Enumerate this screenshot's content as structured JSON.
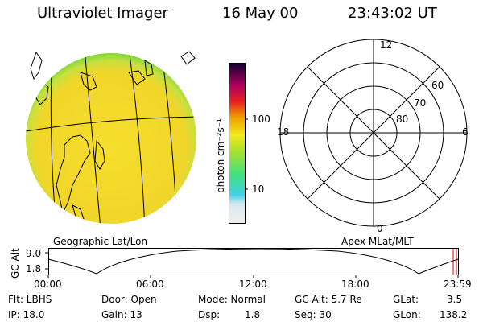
{
  "header": {
    "title": "Ultraviolet Imager",
    "date": "16 May 00",
    "time": "23:43:02 UT"
  },
  "colorbar": {
    "unit_label": "photon cm⁻²s⁻¹",
    "tick_labels": [
      "100",
      "10"
    ]
  },
  "panels": {
    "left_label": "Geographic Lat/Lon",
    "right_label": "Apex MLat/MLT"
  },
  "polar": {
    "mlt_labels": [
      "12",
      "18",
      "6",
      "0"
    ],
    "lat_labels": [
      "60",
      "70",
      "80"
    ]
  },
  "timeline": {
    "ylabel": "GC Alt",
    "y_ticks": [
      "9.0",
      "1.8"
    ],
    "x_ticks": [
      "00:00",
      "06:00",
      "12:00",
      "18:00",
      "23:59"
    ]
  },
  "info": {
    "flt": "Flt: LBHS",
    "ip": "IP: 18.0",
    "door": "Door: Open",
    "gain": "Gain: 13",
    "mode": "Mode: Normal",
    "dsp_label": "Dsp:",
    "dsp_value": "1.8",
    "gc_alt": "GC Alt: 5.7 Re",
    "seq": "Seq: 30",
    "glat_label": "GLat:",
    "glat_value": "3.5",
    "glon_label": "GLon:",
    "glon_value": "138.2"
  },
  "colors": {
    "disk_fill": "#f5dc2a",
    "disk_edge": "#88d838",
    "colorbar_stops": [
      "#e8e8e8",
      "#30c8e0",
      "#90e040",
      "#f0e020",
      "#f0a000",
      "#e02020",
      "#a00070",
      "#200040"
    ],
    "marker": "#e00000"
  }
}
